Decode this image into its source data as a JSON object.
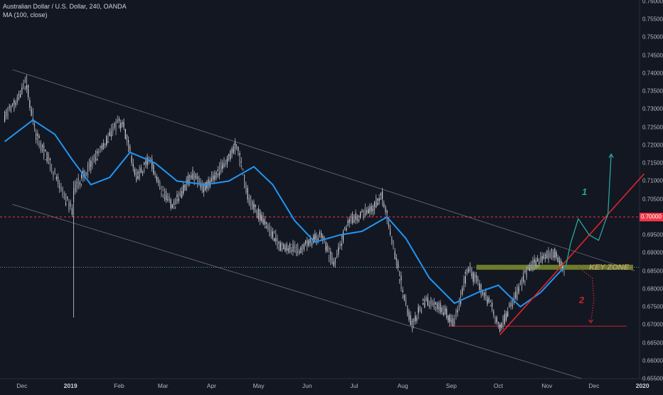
{
  "header": {
    "symbol_line": "Australian Dollar / U.S. Dollar, 240, OANDA",
    "indicator_line": "MA (100, close)"
  },
  "price_flag": "0.70000",
  "annotations": {
    "key_zone": "KEY ZONE",
    "scenario_1": "1",
    "scenario_2": "2"
  },
  "colors": {
    "background": "#131722",
    "candle": "#c8ccd6",
    "ma": "#2196f3",
    "resistance": "#f23645",
    "trendline": "#e0252b",
    "key_zone": "#8a9a2c",
    "scenario_1": "#26a69a",
    "scenario_2": "#c2272d",
    "channel": "#6b6f7b"
  },
  "chart_data": {
    "type": "candlestick",
    "symbol": "Australian Dollar / U.S. Dollar, 240, OANDA",
    "indicator": "MA (100, close)",
    "x_ticks": [
      "Dec",
      "2019",
      "Feb",
      "Mar",
      "Apr",
      "May",
      "Jun",
      "Jul",
      "Aug",
      "Sep",
      "Oct",
      "Nov",
      "Dec",
      "2020"
    ],
    "y_ticks": [
      "0.76000",
      "0.75500",
      "0.75000",
      "0.74500",
      "0.74000",
      "0.73500",
      "0.73000",
      "0.72500",
      "0.72000",
      "0.71500",
      "0.71000",
      "0.70500",
      "0.70000",
      "0.69500",
      "0.69000",
      "0.68500",
      "0.68000",
      "0.67500",
      "0.67000",
      "0.66500",
      "0.66000",
      "0.65500"
    ],
    "ylim": [
      0.6545,
      0.7605
    ],
    "price_path": [
      {
        "date": "2018-11-20",
        "price": 0.728
      },
      {
        "date": "2018-11-28",
        "price": 0.732
      },
      {
        "date": "2018-12-04",
        "price": 0.738
      },
      {
        "date": "2018-12-10",
        "price": 0.723
      },
      {
        "date": "2018-12-20",
        "price": 0.714
      },
      {
        "date": "2018-12-28",
        "price": 0.706
      },
      {
        "date": "2019-01-02",
        "price": 0.702
      },
      {
        "date": "2019-01-04",
        "price": 0.708
      },
      {
        "date": "2019-01-15",
        "price": 0.715
      },
      {
        "date": "2019-01-31",
        "price": 0.726
      },
      {
        "date": "2019-02-04",
        "price": 0.726
      },
      {
        "date": "2019-02-12",
        "price": 0.711
      },
      {
        "date": "2019-02-21",
        "price": 0.716
      },
      {
        "date": "2019-03-01",
        "price": 0.707
      },
      {
        "date": "2019-03-08",
        "price": 0.703
      },
      {
        "date": "2019-03-20",
        "price": 0.712
      },
      {
        "date": "2019-03-28",
        "price": 0.708
      },
      {
        "date": "2019-04-10",
        "price": 0.715
      },
      {
        "date": "2019-04-17",
        "price": 0.72
      },
      {
        "date": "2019-04-25",
        "price": 0.705
      },
      {
        "date": "2019-05-03",
        "price": 0.7
      },
      {
        "date": "2019-05-15",
        "price": 0.692
      },
      {
        "date": "2019-05-28",
        "price": 0.691
      },
      {
        "date": "2019-06-10",
        "price": 0.695
      },
      {
        "date": "2019-06-18",
        "price": 0.687
      },
      {
        "date": "2019-06-28",
        "price": 0.699
      },
      {
        "date": "2019-07-12",
        "price": 0.702
      },
      {
        "date": "2019-07-19",
        "price": 0.706
      },
      {
        "date": "2019-07-26",
        "price": 0.693
      },
      {
        "date": "2019-08-02",
        "price": 0.678
      },
      {
        "date": "2019-08-07",
        "price": 0.67
      },
      {
        "date": "2019-08-16",
        "price": 0.677
      },
      {
        "date": "2019-08-28",
        "price": 0.674
      },
      {
        "date": "2019-09-03",
        "price": 0.67
      },
      {
        "date": "2019-09-12",
        "price": 0.686
      },
      {
        "date": "2019-09-20",
        "price": 0.68
      },
      {
        "date": "2019-09-26",
        "price": 0.676
      },
      {
        "date": "2019-10-02",
        "price": 0.669
      },
      {
        "date": "2019-10-10",
        "price": 0.676
      },
      {
        "date": "2019-10-21",
        "price": 0.686
      },
      {
        "date": "2019-10-31",
        "price": 0.689
      },
      {
        "date": "2019-11-06",
        "price": 0.69
      },
      {
        "date": "2019-11-12",
        "price": 0.686
      }
    ],
    "moving_average": [
      {
        "date": "2018-11-20",
        "value": 0.721
      },
      {
        "date": "2018-12-08",
        "value": 0.727
      },
      {
        "date": "2018-12-22",
        "value": 0.723
      },
      {
        "date": "2019-01-02",
        "value": 0.716
      },
      {
        "date": "2019-01-14",
        "value": 0.709
      },
      {
        "date": "2019-01-26",
        "value": 0.711
      },
      {
        "date": "2019-02-08",
        "value": 0.718
      },
      {
        "date": "2019-02-24",
        "value": 0.715
      },
      {
        "date": "2019-03-10",
        "value": 0.71
      },
      {
        "date": "2019-03-28",
        "value": 0.709
      },
      {
        "date": "2019-04-12",
        "value": 0.71
      },
      {
        "date": "2019-04-28",
        "value": 0.714
      },
      {
        "date": "2019-05-10",
        "value": 0.709
      },
      {
        "date": "2019-05-24",
        "value": 0.699
      },
      {
        "date": "2019-06-06",
        "value": 0.693
      },
      {
        "date": "2019-06-22",
        "value": 0.695
      },
      {
        "date": "2019-07-06",
        "value": 0.696
      },
      {
        "date": "2019-07-22",
        "value": 0.7
      },
      {
        "date": "2019-08-03",
        "value": 0.694
      },
      {
        "date": "2019-08-18",
        "value": 0.683
      },
      {
        "date": "2019-09-03",
        "value": 0.676
      },
      {
        "date": "2019-09-18",
        "value": 0.679
      },
      {
        "date": "2019-10-01",
        "value": 0.681
      },
      {
        "date": "2019-10-15",
        "value": 0.675
      },
      {
        "date": "2019-10-28",
        "value": 0.679
      },
      {
        "date": "2019-11-12",
        "value": 0.686
      }
    ],
    "horizontal_levels": [
      {
        "price": 0.7,
        "style": "dashed",
        "color": "#f23645"
      },
      {
        "price": 0.686,
        "style": "dotted",
        "color": "#4aa3a3"
      },
      {
        "price": 0.6696,
        "style": "solid",
        "color": "#c2272d",
        "start": "2019-08-30",
        "end": "2019-12-22"
      }
    ],
    "key_zone": {
      "label": "KEY ZONE",
      "low": 0.6853,
      "high": 0.6867,
      "start": "2019-09-17",
      "end": "2019-12-26"
    },
    "channel": {
      "upper": [
        {
          "date": "2018-11-25",
          "price": 0.741
        },
        {
          "date": "2019-12-27",
          "price": 0.685
        }
      ],
      "lower": [
        {
          "date": "2018-11-25",
          "price": 0.7035
        },
        {
          "date": "2019-11-23",
          "price": 0.655
        }
      ]
    },
    "trendline": [
      {
        "date": "2019-10-02",
        "price": 0.6672
      },
      {
        "date": "2020-01-02",
        "price": 0.712
      }
    ],
    "scenario_1": [
      {
        "date": "2019-11-13",
        "price": 0.686
      },
      {
        "date": "2019-11-16",
        "price": 0.6925
      },
      {
        "date": "2019-11-21",
        "price": 0.6995
      },
      {
        "date": "2019-11-28",
        "price": 0.695
      },
      {
        "date": "2019-12-04",
        "price": 0.6935
      },
      {
        "date": "2019-12-10",
        "price": 0.701
      },
      {
        "date": "2019-12-12",
        "price": 0.7175
      }
    ],
    "scenario_2": [
      {
        "date": "2019-11-21",
        "price": 0.686
      },
      {
        "date": "2019-11-30",
        "price": 0.683
      },
      {
        "date": "2019-12-01",
        "price": 0.677
      },
      {
        "date": "2019-11-29",
        "price": 0.6706
      }
    ],
    "grid": false
  }
}
